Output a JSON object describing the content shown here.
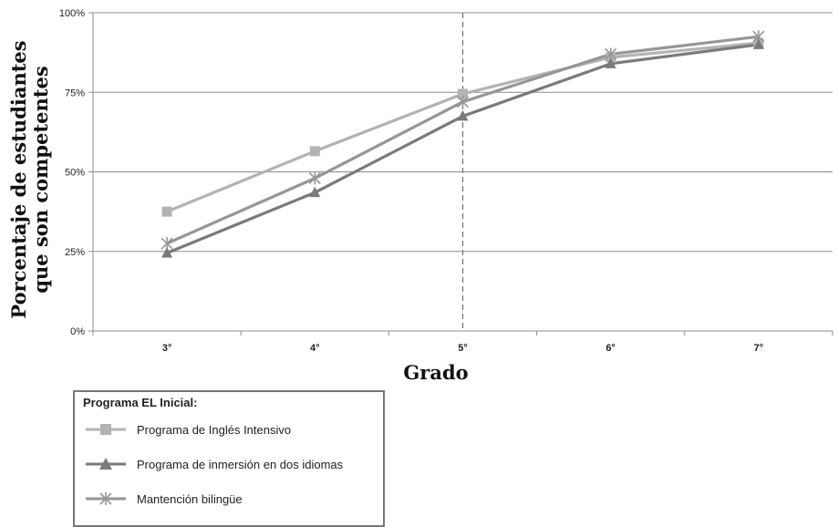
{
  "chart_data": {
    "type": "line",
    "categories": [
      "3°",
      "4°",
      "5°",
      "6°",
      "7°"
    ],
    "ylabel_line1": "Porcentaje de estudiantes",
    "ylabel_line2": "que son competentes",
    "xlabel": "Grado",
    "ylim": [
      0,
      100
    ],
    "yticks": [
      "0%",
      "25%",
      "50%",
      "75%",
      "100%"
    ],
    "grid": "horizontal",
    "reference_line": {
      "category": "5°",
      "style": "dashed"
    },
    "legend_title": "Programa EL Inicial:",
    "legend_position": "bottom-left",
    "series": [
      {
        "name": "Programa de Inglés Intensivo",
        "values": [
          37.5,
          56.5,
          74.5,
          86,
          90.5
        ],
        "color": "#b3b3b3",
        "marker": "square"
      },
      {
        "name": "Programa de inmersión en dos idiomas",
        "values": [
          24.5,
          43.5,
          67.5,
          84,
          90
        ],
        "color": "#7a7a7a",
        "marker": "triangle"
      },
      {
        "name": "Mantención bilingüe",
        "values": [
          27.5,
          48,
          72,
          87,
          92.5
        ],
        "color": "#969696",
        "marker": "star"
      }
    ]
  }
}
